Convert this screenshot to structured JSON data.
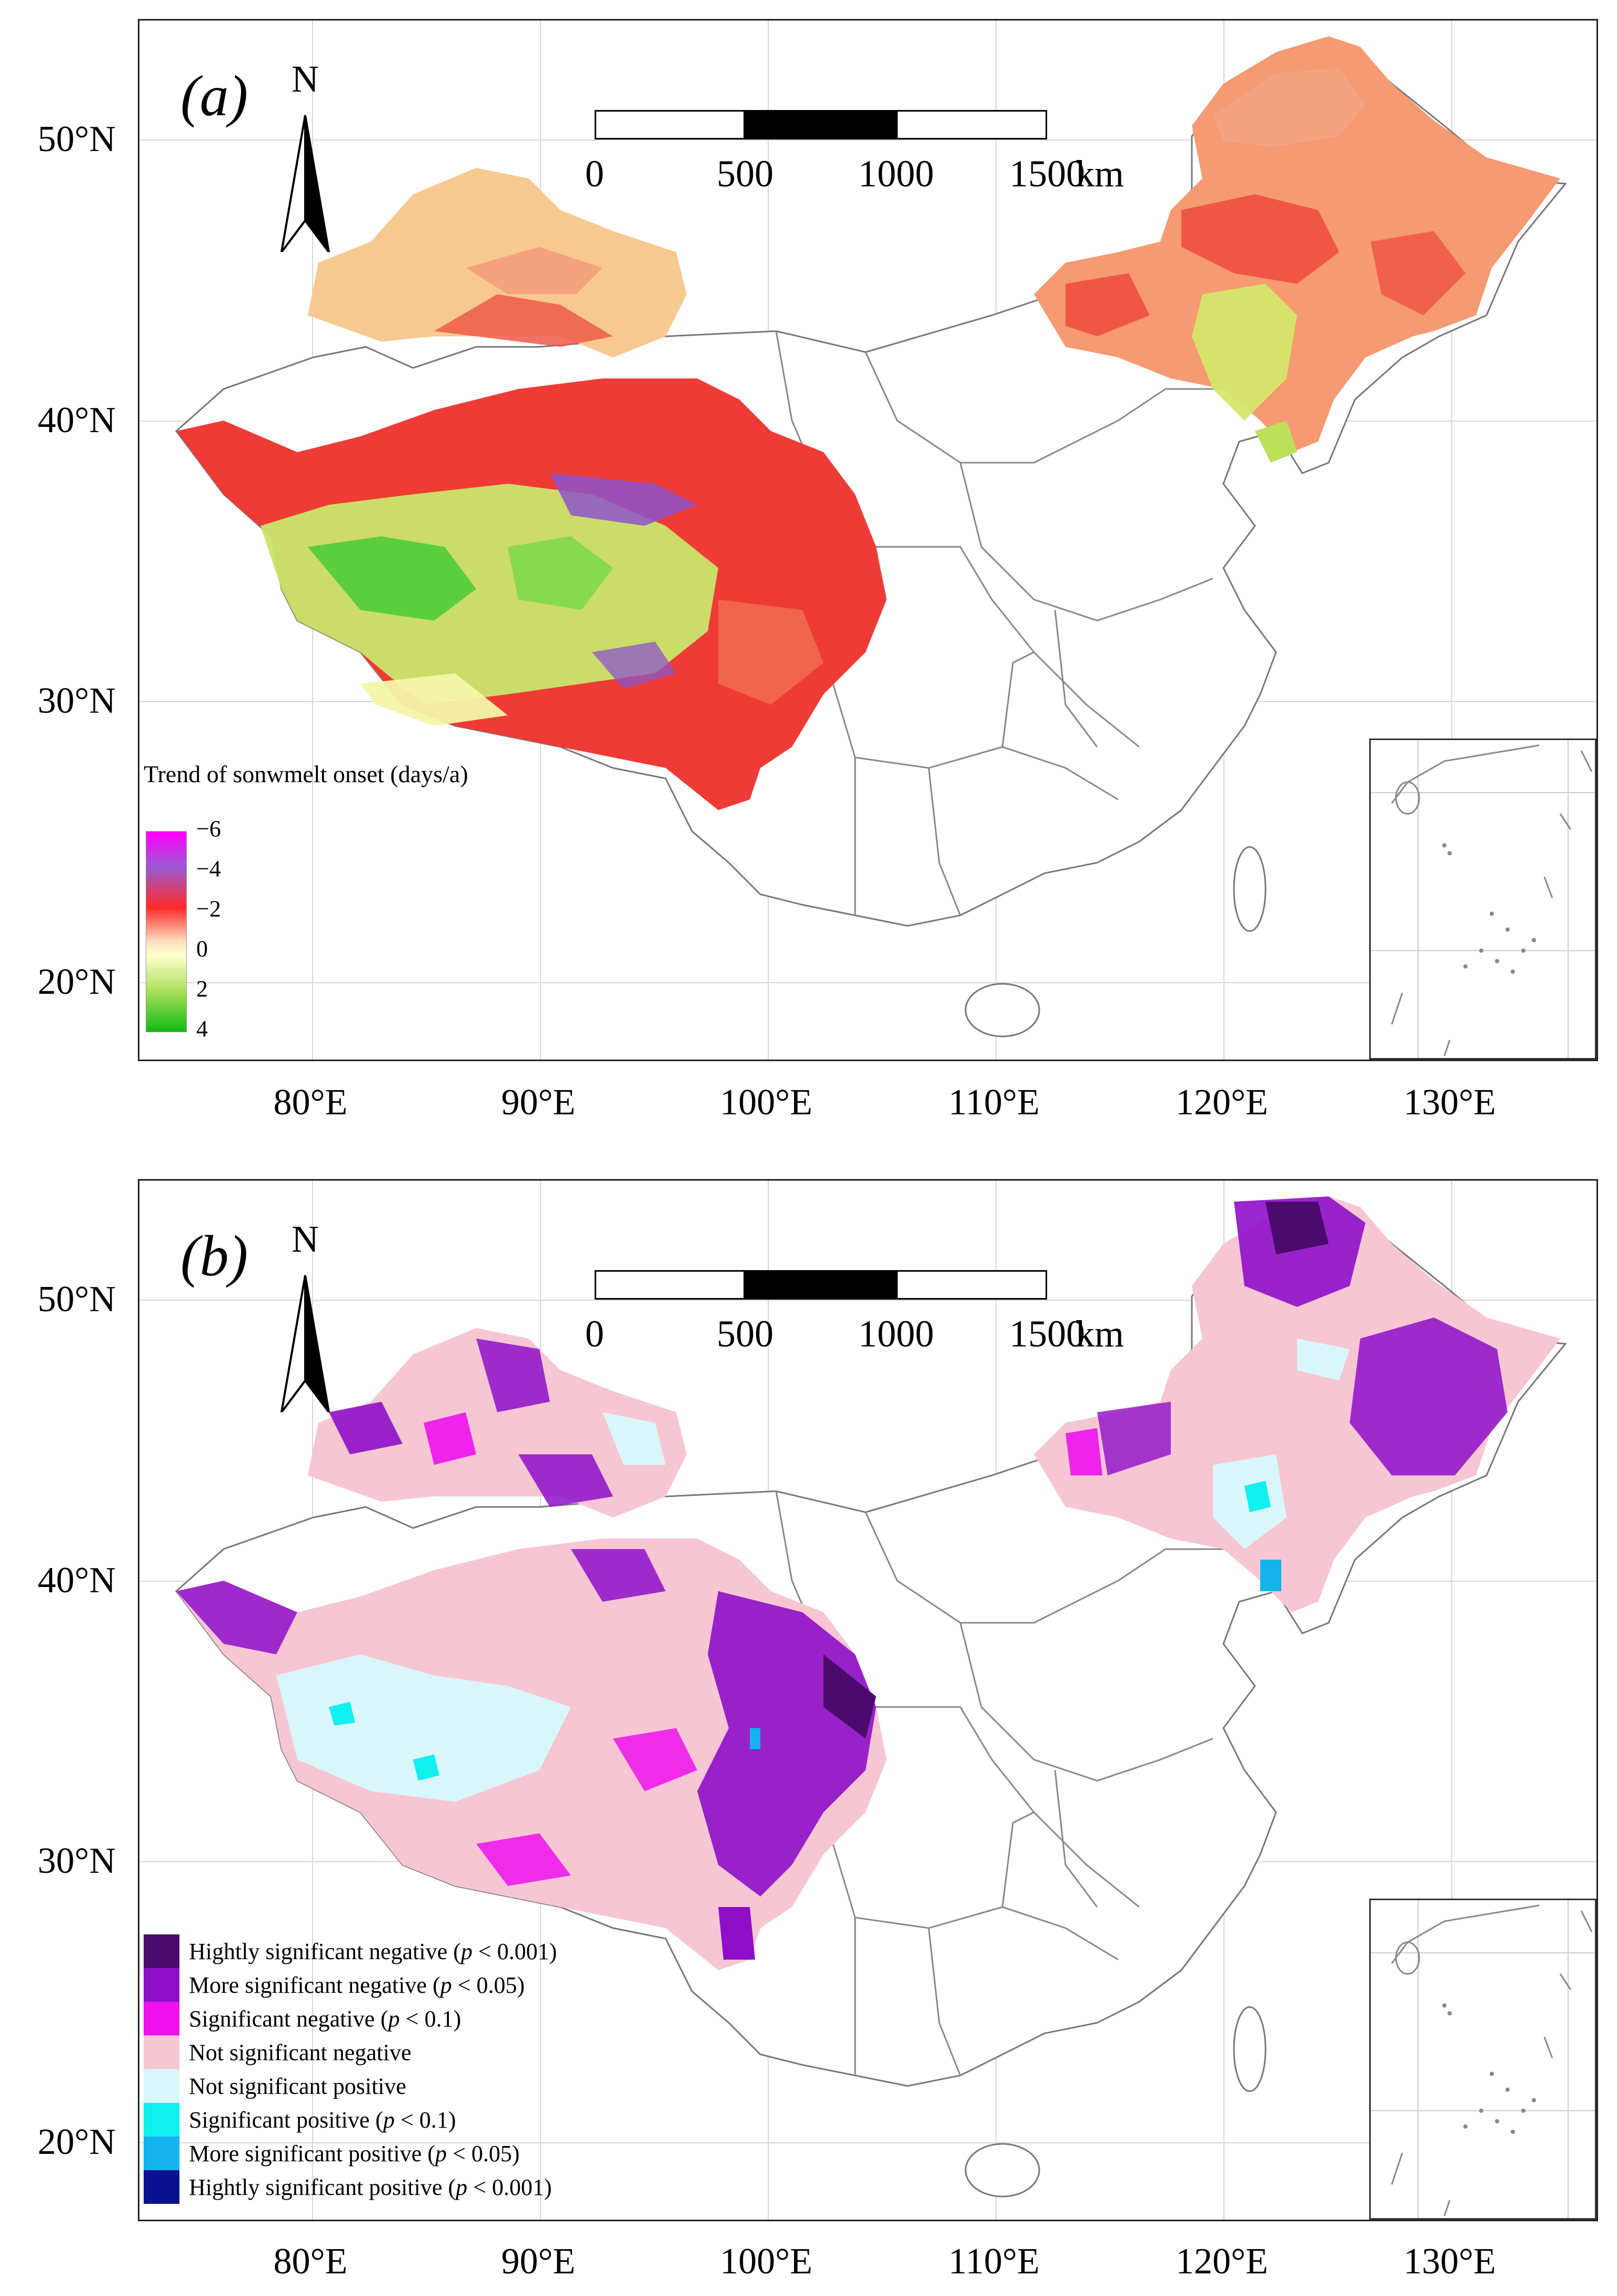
{
  "panel_a": {
    "label": "(a)",
    "north": "N",
    "scale": {
      "ticks": [
        "0",
        "500",
        "1000",
        "1500"
      ],
      "unit": "km"
    },
    "legend": {
      "title": "Trend of sonwmelt onset (days/a)",
      "ticks": [
        "−6",
        "−4",
        "−2",
        "0",
        "2",
        "4"
      ],
      "colors": [
        "#ff00ff",
        "#9b59d0",
        "#ff1f1f",
        "#ffffcc",
        "#a8e05a",
        "#11bb11"
      ]
    }
  },
  "panel_b": {
    "label": "(b)",
    "north": "N",
    "scale": {
      "ticks": [
        "0",
        "500",
        "1000",
        "1500"
      ],
      "unit": "km"
    },
    "legend": [
      {
        "text": "Hightly significant negative (",
        "p": "p",
        "cond": " < 0.001)",
        "color": "#4b0a6e"
      },
      {
        "text": "More significant negative (",
        "p": "p",
        "cond": " < 0.05)",
        "color": "#8e0ec9"
      },
      {
        "text": "Significant negative (",
        "p": "p",
        "cond": " < 0.1)",
        "color": "#ee11ee"
      },
      {
        "text": "Not significant negative",
        "p": "",
        "cond": "",
        "color": "#f7c6d3"
      },
      {
        "text": "Not significant positive",
        "p": "",
        "cond": "",
        "color": "#d9f7fa"
      },
      {
        "text": "Significant positive (",
        "p": "p",
        "cond": " < 0.1)",
        "color": "#10f0ef"
      },
      {
        "text": "More significant positive (",
        "p": "p",
        "cond": " < 0.05)",
        "color": "#12b3ef"
      },
      {
        "text": "Hightly significant positive (",
        "p": "p",
        "cond": " < 0.001)",
        "color": "#0a1190"
      }
    ]
  },
  "axes": {
    "lat_labels": [
      "50°N",
      "40°N",
      "30°N",
      "20°N"
    ],
    "lon_labels": [
      "80°E",
      "90°E",
      "100°E",
      "110°E",
      "120°E",
      "130°E"
    ]
  }
}
